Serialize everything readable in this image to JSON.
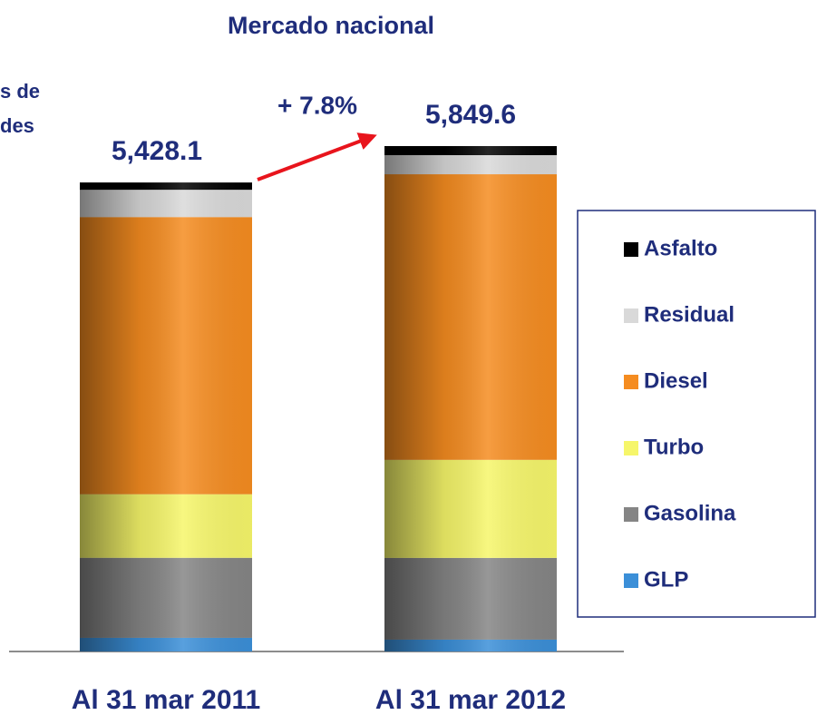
{
  "chart_data": {
    "type": "stacked_bar",
    "title": "Mercado nacional",
    "ylabel_lines": [
      "s de",
      "des"
    ],
    "annotation": "+ 7.8%",
    "categories": [
      "Al 31 mar 2011",
      "Al 31 mar 2012"
    ],
    "totals": [
      5428.1,
      5849.6
    ],
    "total_labels": [
      "5,428.1",
      "5,849.6"
    ],
    "series": [
      {
        "name": "GLP",
        "color": "#3b8fd8",
        "values": [
          158,
          137
        ]
      },
      {
        "name": "Gasolina",
        "color": "#858585",
        "values": [
          926,
          946
        ]
      },
      {
        "name": "Turbo",
        "color": "#f6f66a",
        "values": [
          736,
          1135
        ]
      },
      {
        "name": "Diesel",
        "color": "#f58c20",
        "values": [
          3208,
          3305.6
        ]
      },
      {
        "name": "Residual",
        "color": "#d9d9d9",
        "values": [
          316.1,
          221
        ]
      },
      {
        "name": "Asfalto",
        "color": "#000000",
        "values": [
          84,
          105
        ]
      }
    ],
    "legend": "right"
  }
}
